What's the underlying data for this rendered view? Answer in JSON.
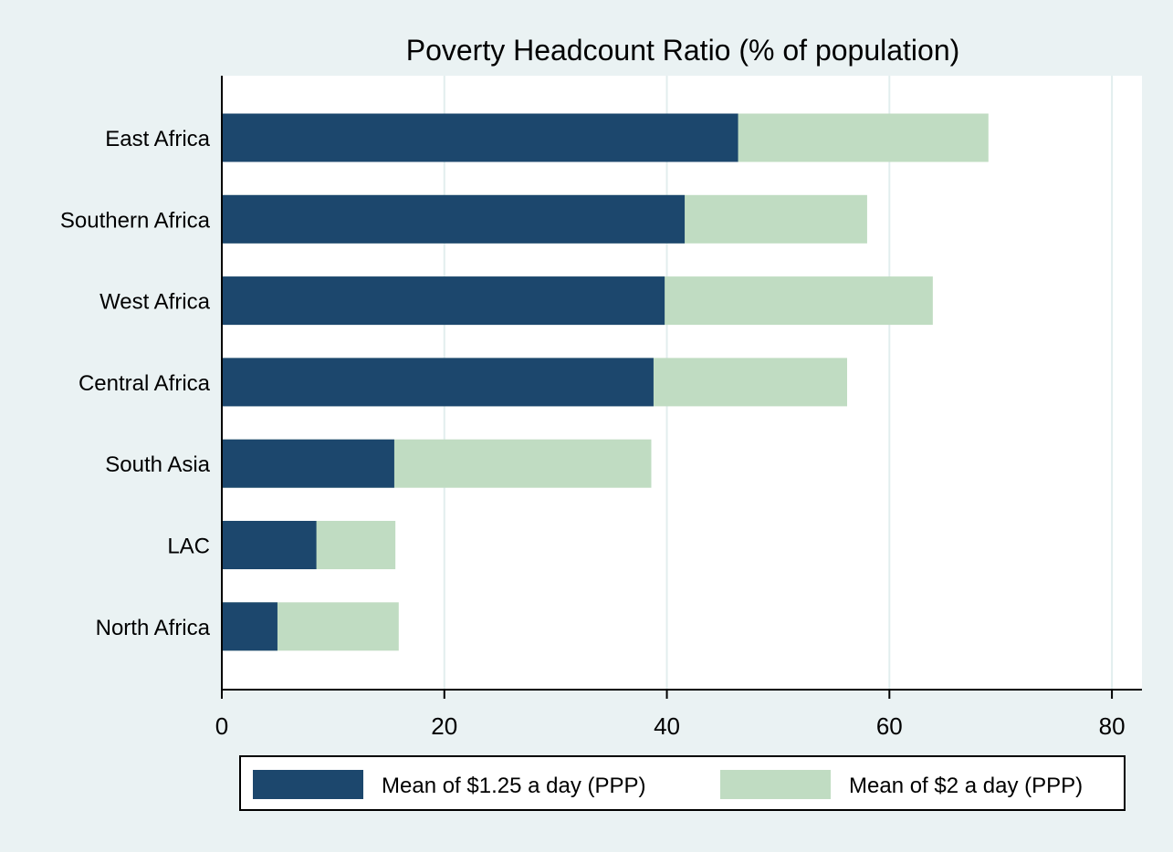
{
  "chart_data": {
    "type": "bar",
    "orientation": "horizontal",
    "stacked": false,
    "overlapped": true,
    "title": "Poverty Headcount Ratio (% of population)",
    "categories": [
      "East Africa",
      "Southern Africa",
      "West Africa",
      "Central Africa",
      "South Asia",
      "LAC",
      "North Africa"
    ],
    "series": [
      {
        "name": "Mean of $1.25 a day (PPP)",
        "values": [
          46.4,
          41.6,
          39.8,
          38.8,
          15.5,
          8.5,
          5.0
        ]
      },
      {
        "name": "Mean of $2 a day (PPP)",
        "values": [
          68.9,
          58.0,
          63.9,
          56.2,
          38.6,
          15.6,
          15.9
        ]
      }
    ],
    "xlim": [
      0,
      82.7
    ],
    "xticks": [
      "0",
      "20",
      "40",
      "60",
      "80"
    ],
    "xtick_values": [
      0,
      20,
      40,
      60,
      80
    ],
    "grid": true,
    "legend_position": "bottom",
    "colors": {
      "series1": "#1c476d",
      "series2": "#c0dcc2",
      "plot_background": "#ffffff",
      "page_background": "#eaf2f3",
      "grid": "#e2eeee"
    }
  }
}
